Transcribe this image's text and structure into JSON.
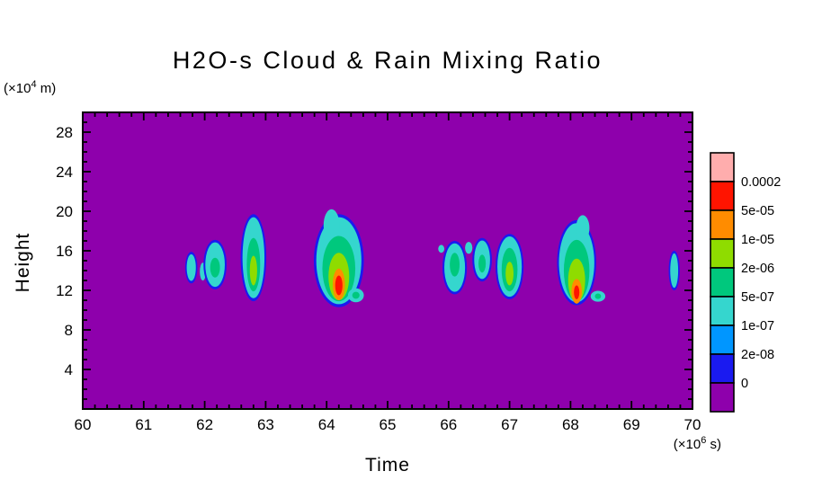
{
  "title": "H2O-s Cloud & Rain Mixing Ratio",
  "xlabel": "Time",
  "ylabel": "Height",
  "y_unit": {
    "prefix": "(×10",
    "exp": "4",
    "suffix": " m)"
  },
  "x_unit": {
    "prefix": "(×10",
    "exp": "6",
    "suffix": " s)"
  },
  "chart_data": {
    "type": "heatmap",
    "title": "H2O-s Cloud & Rain Mixing Ratio",
    "xlabel": "Time",
    "ylabel": "Height",
    "x_unit": "(×10⁶ s)",
    "y_unit": "(×10⁴ m)",
    "xlim": [
      60,
      70
    ],
    "ylim": [
      0,
      30
    ],
    "x_ticks": [
      60,
      61,
      62,
      63,
      64,
      65,
      66,
      67,
      68,
      69,
      70
    ],
    "y_ticks": [
      4,
      8,
      12,
      16,
      20,
      24,
      28
    ],
    "x_minor_step": 0.2,
    "y_minor_step": 1,
    "background_value": 0,
    "background_color": "#8E00AC",
    "colorbar": {
      "colors_top_to_bottom": [
        "#FFADAD",
        "#FF1400",
        "#FF8C00",
        "#8FDC00",
        "#00C87D",
        "#35D6CE",
        "#0096FF",
        "#1A1AF0",
        "#8E00AC"
      ],
      "labels_top_to_bottom": [
        "0.0002",
        "5e-05",
        "1e-05",
        "2e-06",
        "5e-07",
        "1e-07",
        "2e-08",
        "0"
      ]
    },
    "features": [
      {
        "t": 61.78,
        "layers": [
          {
            "ci": 7,
            "h": 14.3,
            "rx": 0.1,
            "ry": 1.6
          },
          {
            "ci": 5,
            "h": 14.3,
            "rx": 0.075,
            "ry": 1.35
          }
        ]
      },
      {
        "t": 61.97,
        "layers": [
          {
            "ci": 5,
            "h": 13.9,
            "rx": 0.05,
            "ry": 0.9
          }
        ]
      },
      {
        "t": 62.17,
        "layers": [
          {
            "ci": 7,
            "h": 14.6,
            "rx": 0.19,
            "ry": 2.5
          },
          {
            "ci": 5,
            "h": 14.6,
            "rx": 0.16,
            "ry": 2.25
          },
          {
            "ci": 4,
            "h": 14.3,
            "rx": 0.08,
            "ry": 1.0
          }
        ]
      },
      {
        "t": 62.8,
        "layers": [
          {
            "ci": 7,
            "h": 15.3,
            "rx": 0.21,
            "ry": 4.4
          },
          {
            "ci": 5,
            "h": 15.3,
            "rx": 0.18,
            "ry": 4.1
          },
          {
            "ci": 4,
            "h": 14.6,
            "rx": 0.11,
            "ry": 2.7
          },
          {
            "ci": 3,
            "h": 14.0,
            "rx": 0.06,
            "ry": 1.5
          }
        ]
      },
      {
        "t": 64.2,
        "layers": [
          {
            "ci": 7,
            "h": 15.0,
            "rx": 0.41,
            "ry": 4.7
          },
          {
            "ci": 5,
            "h": 15.0,
            "rx": 0.37,
            "ry": 4.4
          },
          {
            "ci": 5,
            "h": 18.6,
            "rx": 0.13,
            "ry": 1.6,
            "dt": -0.12
          },
          {
            "ci": 4,
            "h": 14.2,
            "rx": 0.27,
            "ry": 3.3
          },
          {
            "ci": 3,
            "h": 13.4,
            "rx": 0.17,
            "ry": 2.4
          },
          {
            "ci": 2,
            "h": 12.6,
            "rx": 0.1,
            "ry": 1.6
          },
          {
            "ci": 1,
            "h": 12.5,
            "rx": 0.06,
            "ry": 1.0
          }
        ]
      },
      {
        "t": 64.48,
        "layers": [
          {
            "ci": 5,
            "h": 11.5,
            "rx": 0.13,
            "ry": 0.7
          },
          {
            "ci": 4,
            "h": 11.5,
            "rx": 0.06,
            "ry": 0.35
          }
        ]
      },
      {
        "t": 65.88,
        "layers": [
          {
            "ci": 5,
            "h": 16.2,
            "rx": 0.05,
            "ry": 0.4
          }
        ]
      },
      {
        "t": 66.1,
        "layers": [
          {
            "ci": 7,
            "h": 14.3,
            "rx": 0.2,
            "ry": 2.7
          },
          {
            "ci": 5,
            "h": 14.3,
            "rx": 0.17,
            "ry": 2.45
          },
          {
            "ci": 4,
            "h": 14.6,
            "rx": 0.08,
            "ry": 1.2
          }
        ]
      },
      {
        "t": 66.33,
        "layers": [
          {
            "ci": 5,
            "h": 16.3,
            "rx": 0.06,
            "ry": 0.6
          }
        ]
      },
      {
        "t": 66.55,
        "layers": [
          {
            "ci": 7,
            "h": 15.1,
            "rx": 0.16,
            "ry": 2.2
          },
          {
            "ci": 5,
            "h": 15.1,
            "rx": 0.13,
            "ry": 1.95
          },
          {
            "ci": 4,
            "h": 14.7,
            "rx": 0.06,
            "ry": 0.9
          }
        ]
      },
      {
        "t": 67.0,
        "layers": [
          {
            "ci": 7,
            "h": 14.4,
            "rx": 0.23,
            "ry": 3.3
          },
          {
            "ci": 5,
            "h": 14.4,
            "rx": 0.2,
            "ry": 3.05
          },
          {
            "ci": 4,
            "h": 14.1,
            "rx": 0.13,
            "ry": 2.2
          },
          {
            "ci": 3,
            "h": 13.7,
            "rx": 0.065,
            "ry": 1.2
          }
        ]
      },
      {
        "t": 68.1,
        "layers": [
          {
            "ci": 7,
            "h": 14.8,
            "rx": 0.32,
            "ry": 4.3
          },
          {
            "ci": 5,
            "h": 14.8,
            "rx": 0.29,
            "ry": 4.0
          },
          {
            "ci": 5,
            "h": 18.3,
            "rx": 0.11,
            "ry": 1.3,
            "dt": 0.1
          },
          {
            "ci": 4,
            "h": 14.0,
            "rx": 0.21,
            "ry": 3.1
          },
          {
            "ci": 3,
            "h": 13.0,
            "rx": 0.14,
            "ry": 2.2
          },
          {
            "ci": 2,
            "h": 11.9,
            "rx": 0.085,
            "ry": 1.25
          },
          {
            "ci": 1,
            "h": 11.8,
            "rx": 0.045,
            "ry": 0.7
          }
        ]
      },
      {
        "t": 68.45,
        "layers": [
          {
            "ci": 5,
            "h": 11.4,
            "rx": 0.12,
            "ry": 0.55
          },
          {
            "ci": 4,
            "h": 11.4,
            "rx": 0.05,
            "ry": 0.28
          }
        ]
      },
      {
        "t": 69.7,
        "layers": [
          {
            "ci": 7,
            "h": 14.0,
            "rx": 0.09,
            "ry": 2.0
          },
          {
            "ci": 5,
            "h": 14.0,
            "rx": 0.065,
            "ry": 1.75
          }
        ]
      }
    ]
  }
}
